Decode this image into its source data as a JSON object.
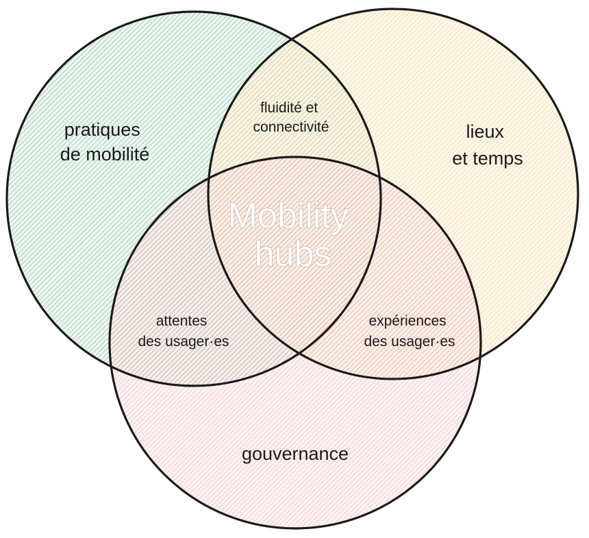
{
  "diagram": {
    "sets": [
      {
        "id": "mobilite",
        "lines": [
          "pratiques",
          "de mobilité"
        ],
        "color": "#5fae7a"
      },
      {
        "id": "lieux",
        "lines": [
          "lieux",
          "et temps"
        ],
        "color": "#e8b55a"
      },
      {
        "id": "gouvernance",
        "lines": [
          "gouvernance"
        ],
        "color": "#e06a6a"
      }
    ],
    "intersections": {
      "mobilite_lieux": [
        "fluidité et",
        "connectivité"
      ],
      "mobilite_gouvernance": [
        "attentes",
        "des usager·es"
      ],
      "lieux_gouvernance": [
        "expériences",
        "des usager·es"
      ]
    },
    "center": [
      "Mobility",
      "hubs"
    ]
  }
}
